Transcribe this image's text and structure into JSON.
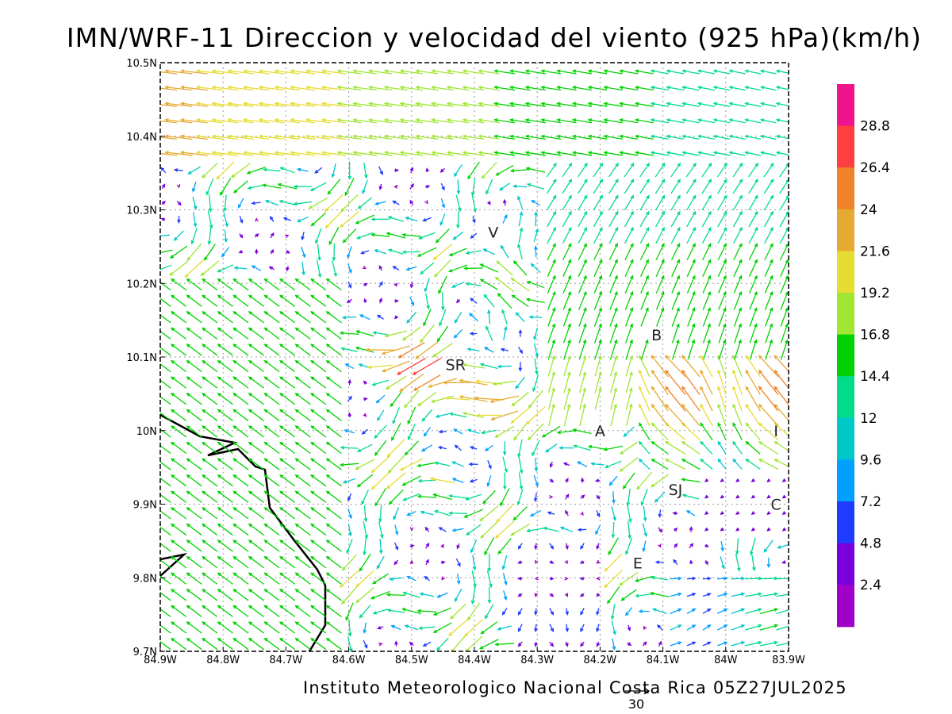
{
  "title": "IMN/WRF-11 Direccion y velocidad del viento (925 hPa)(km/h)",
  "footer": "Instituto Meteorologico Nacional Costa Rica 05Z27JUL2025",
  "reference_vector": {
    "label": "30",
    "value": 30,
    "units": "km/h"
  },
  "map": {
    "lon_range": [
      -84.9,
      -83.9
    ],
    "lat_range": [
      9.7,
      10.5
    ],
    "x_ticks": [
      "84.9W",
      "84.8W",
      "84.7W",
      "84.6W",
      "84.5W",
      "84.4W",
      "84.3W",
      "84.2W",
      "84.1W",
      "84W",
      "83.9W"
    ],
    "y_ticks": [
      "9.7N",
      "9.8N",
      "9.9N",
      "10N",
      "10.1N",
      "10.2N",
      "10.3N",
      "10.4N",
      "10.5N"
    ],
    "grid": true,
    "cities": [
      {
        "label": "V",
        "lon": -84.37,
        "lat": 10.27
      },
      {
        "label": "SR",
        "lon": -84.43,
        "lat": 10.09
      },
      {
        "label": "B",
        "lon": -84.11,
        "lat": 10.13
      },
      {
        "label": "A",
        "lon": -84.2,
        "lat": 10.0
      },
      {
        "label": "I",
        "lon": -83.92,
        "lat": 10.0
      },
      {
        "label": "SJ",
        "lon": -84.08,
        "lat": 9.92
      },
      {
        "label": "C",
        "lon": -83.92,
        "lat": 9.9
      },
      {
        "label": "E",
        "lon": -84.14,
        "lat": 9.82
      }
    ]
  },
  "colorbar": {
    "labels": [
      "28.8",
      "26.4",
      "24",
      "21.6",
      "19.2",
      "16.8",
      "14.4",
      "12",
      "9.6",
      "7.2",
      "4.8",
      "2.4"
    ],
    "colors": [
      "#f0148c",
      "#ff4040",
      "#f08228",
      "#e6aa32",
      "#e6dc32",
      "#a0e632",
      "#00d200",
      "#00dc8c",
      "#00c8c8",
      "#00a0ff",
      "#1e3cff",
      "#7800dc",
      "#a000c8"
    ]
  }
}
